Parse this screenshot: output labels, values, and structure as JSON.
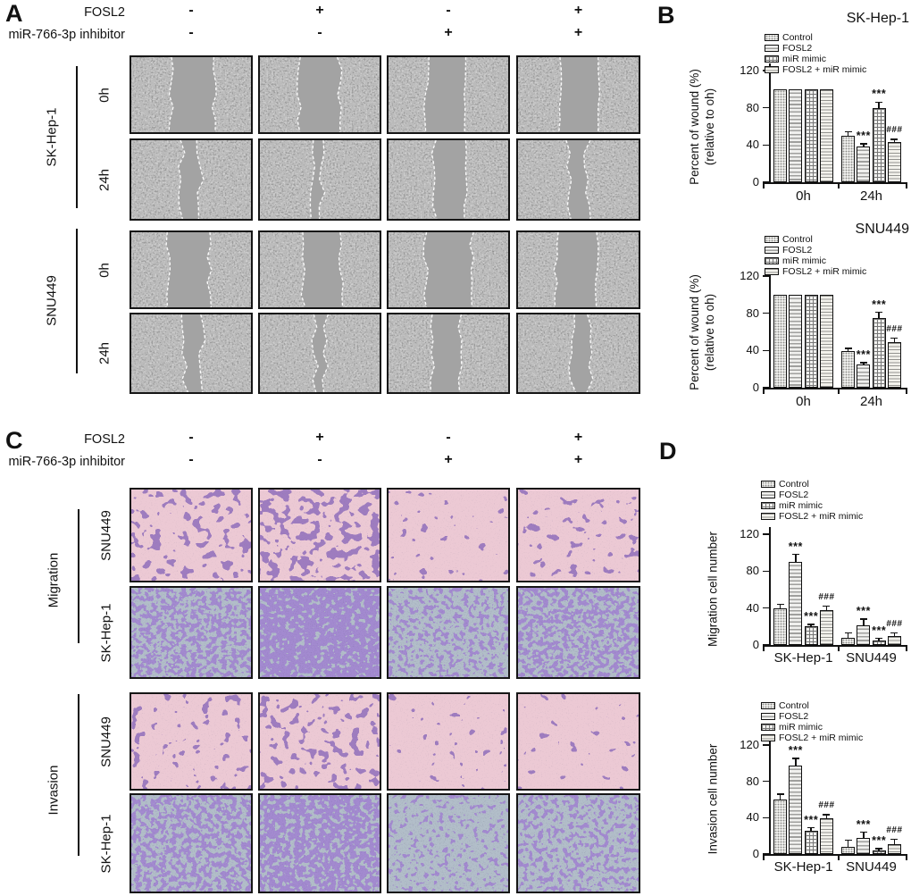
{
  "panels": {
    "A": {
      "letter": "A",
      "header": {
        "row1_label": "FOSL2",
        "row1_signs": [
          "-",
          "+",
          "-",
          "+"
        ],
        "row2_label": "miR-766-3p inhibitor",
        "row2_signs": [
          "-",
          "-",
          "+",
          "+"
        ]
      },
      "row_groups": [
        {
          "group_label": "SK-Hep-1",
          "rows": [
            {
              "label": "0h",
              "wound_widths_pct": [
                36,
                34,
                32,
                31
              ]
            },
            {
              "label": "24h",
              "wound_widths_pct": [
                16,
                8,
                27,
                14
              ]
            }
          ]
        },
        {
          "group_label": "SNU449",
          "rows": [
            {
              "label": "0h",
              "wound_widths_pct": [
                34,
                32,
                38,
                33
              ]
            },
            {
              "label": "24h",
              "wound_widths_pct": [
                15,
                8,
                24,
                14
              ]
            }
          ]
        }
      ]
    },
    "B": {
      "letter": "B"
    },
    "C": {
      "letter": "C",
      "header": {
        "row1_label": "FOSL2",
        "row1_signs": [
          "-",
          "+",
          "-",
          "+"
        ],
        "row2_label": "miR-766-3p inhibitor",
        "row2_signs": [
          "-",
          "-",
          "+",
          "+"
        ]
      },
      "row_groups": [
        {
          "group_label": "Migration",
          "rows": [
            {
              "label": "SNU449",
              "style": "pink",
              "densities": [
                0.32,
                0.4,
                0.13,
                0.2
              ]
            },
            {
              "label": "SK-Hep-1",
              "style": "blue",
              "densities": [
                0.5,
                0.7,
                0.38,
                0.48
              ]
            }
          ]
        },
        {
          "group_label": "Invasion",
          "rows": [
            {
              "label": "SNU449",
              "style": "pink",
              "densities": [
                0.18,
                0.27,
                0.1,
                0.14
              ]
            },
            {
              "label": "SK-Hep-1",
              "style": "blue",
              "densities": [
                0.45,
                0.6,
                0.3,
                0.38
              ]
            }
          ]
        }
      ]
    },
    "D": {
      "letter": "D"
    }
  },
  "colors": {
    "pink_bg": "#ecc9d4",
    "blue_bg": "#b2bec9",
    "purple_stain": "#45267e",
    "purple_stain_blue_row": "#5a35a2",
    "wound_cells": "#8d8d8d",
    "wound_band": "#a3a3a3",
    "axis": "#111111"
  },
  "chart_data": [
    {
      "id": "B1",
      "type": "bar",
      "title": "SK-Hep-1",
      "ylabel": [
        "Percent of wound (%)",
        "(relative to oh)"
      ],
      "ylim": [
        0,
        120
      ],
      "yticks": [
        0,
        40,
        80,
        120
      ],
      "categories": [
        "0h",
        "24h"
      ],
      "legend_position": "top-left-of-plot",
      "series": [
        {
          "name": "Control",
          "values": [
            100,
            50
          ],
          "errors": [
            0,
            4
          ],
          "sig": [
            "",
            ""
          ]
        },
        {
          "name": "FOSL2",
          "values": [
            100,
            38
          ],
          "errors": [
            0,
            3
          ],
          "sig": [
            "",
            "***"
          ]
        },
        {
          "name": "miR mimic",
          "values": [
            100,
            80
          ],
          "errors": [
            0,
            6
          ],
          "sig": [
            "",
            "***"
          ]
        },
        {
          "name": "FOSL2 + miR mimic",
          "values": [
            100,
            43
          ],
          "errors": [
            0,
            3
          ],
          "sig": [
            "",
            "###"
          ]
        }
      ]
    },
    {
      "id": "B2",
      "type": "bar",
      "title": "SNU449",
      "ylabel": [
        "Percent of wound (%)",
        "(relative to oh)"
      ],
      "ylim": [
        0,
        120
      ],
      "yticks": [
        0,
        40,
        80,
        120
      ],
      "categories": [
        "0h",
        "24h"
      ],
      "legend_position": "top-left-of-plot",
      "series": [
        {
          "name": "Control",
          "values": [
            100,
            39
          ],
          "errors": [
            0,
            3
          ],
          "sig": [
            "",
            ""
          ]
        },
        {
          "name": "FOSL2",
          "values": [
            100,
            25
          ],
          "errors": [
            0,
            2
          ],
          "sig": [
            "",
            "***"
          ]
        },
        {
          "name": "miR mimic",
          "values": [
            100,
            75
          ],
          "errors": [
            0,
            6
          ],
          "sig": [
            "",
            "***"
          ]
        },
        {
          "name": "FOSL2 + miR mimic",
          "values": [
            100,
            49
          ],
          "errors": [
            0,
            4
          ],
          "sig": [
            "",
            "###"
          ]
        }
      ]
    },
    {
      "id": "D1",
      "type": "bar",
      "title": "",
      "ylabel": [
        "Migration cell number"
      ],
      "ylim": [
        0,
        120
      ],
      "yticks": [
        0,
        40,
        80,
        120
      ],
      "categories": [
        "SK-Hep-1",
        "SNU449"
      ],
      "legend_position": "above-plot",
      "series": [
        {
          "name": "Control",
          "values": [
            40,
            8
          ],
          "errors": [
            4,
            5
          ],
          "sig": [
            "",
            ""
          ]
        },
        {
          "name": "FOSL2",
          "values": [
            90,
            21
          ],
          "errors": [
            8,
            7
          ],
          "sig": [
            "***",
            "***"
          ]
        },
        {
          "name": "miR mimic",
          "values": [
            20,
            5
          ],
          "errors": [
            2,
            2
          ],
          "sig": [
            "***",
            "***"
          ]
        },
        {
          "name": "FOSL2 + miR mimic",
          "values": [
            38,
            10
          ],
          "errors": [
            4,
            3
          ],
          "sig": [
            "###",
            "###"
          ]
        }
      ]
    },
    {
      "id": "D2",
      "type": "bar",
      "title": "",
      "ylabel": [
        "Invasion cell number"
      ],
      "ylim": [
        0,
        120
      ],
      "yticks": [
        0,
        40,
        80,
        120
      ],
      "categories": [
        "SK-Hep-1",
        "SNU449"
      ],
      "legend_position": "above-plot",
      "series": [
        {
          "name": "Control",
          "values": [
            60,
            8
          ],
          "errors": [
            6,
            7
          ],
          "sig": [
            "",
            ""
          ]
        },
        {
          "name": "FOSL2",
          "values": [
            97,
            18
          ],
          "errors": [
            8,
            6
          ],
          "sig": [
            "***",
            "***"
          ]
        },
        {
          "name": "miR mimic",
          "values": [
            26,
            4
          ],
          "errors": [
            3,
            2
          ],
          "sig": [
            "***",
            "***"
          ]
        },
        {
          "name": "FOSL2 + miR mimic",
          "values": [
            39,
            11
          ],
          "errors": [
            4,
            5
          ],
          "sig": [
            "###",
            "###"
          ]
        }
      ]
    }
  ]
}
